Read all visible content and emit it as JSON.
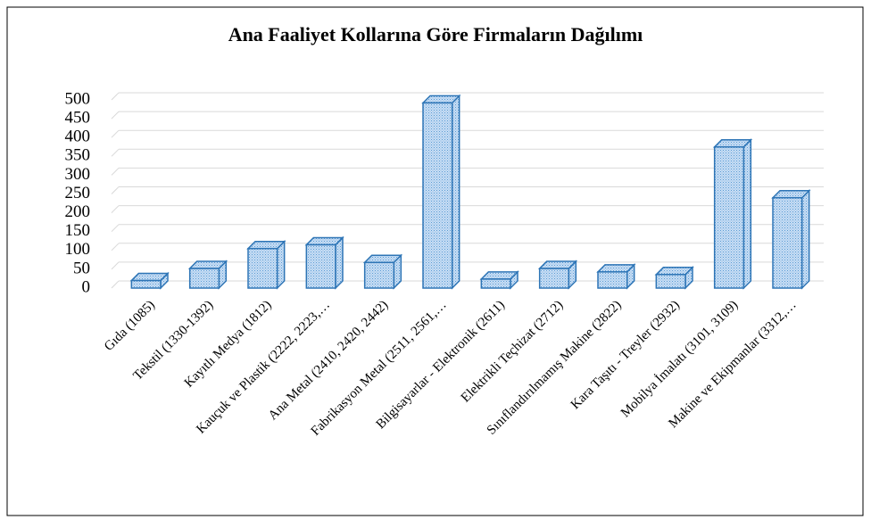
{
  "chart_data": {
    "type": "bar3d",
    "title": "Ana Faaliyet Kollarına Göre Firmaların Dağılımı",
    "categories": [
      "Gıda (1085)",
      "Tekstil (1330-1392)",
      "Kayıtlı Medya (1812)",
      "Kauçuk ve Plastik (2222, 2223,…",
      "Ana Metal (2410, 2420, 2442)",
      "Fabrikasyon Metal (2511, 2561,…",
      "Bilgisayarlar - Elektronik (2611)",
      "Elektrikli Teçhizat (2712)",
      "Sınıflandırılmamış Makine (2822)",
      "Kara Taşıtı - Treyler (2932)",
      "Mobilya İmalatı (3101, 3109)",
      "Makine ve Ekipmanlar (3312,…"
    ],
    "values": [
      20,
      52,
      105,
      115,
      68,
      492,
      24,
      52,
      43,
      36,
      375,
      240
    ],
    "color": "#b9d5f0",
    "edge_color": "#2e75b6",
    "ylim": [
      0,
      500
    ],
    "yticks": [
      0,
      50,
      100,
      150,
      200,
      250,
      300,
      350,
      400,
      450,
      500
    ],
    "grid": true
  }
}
